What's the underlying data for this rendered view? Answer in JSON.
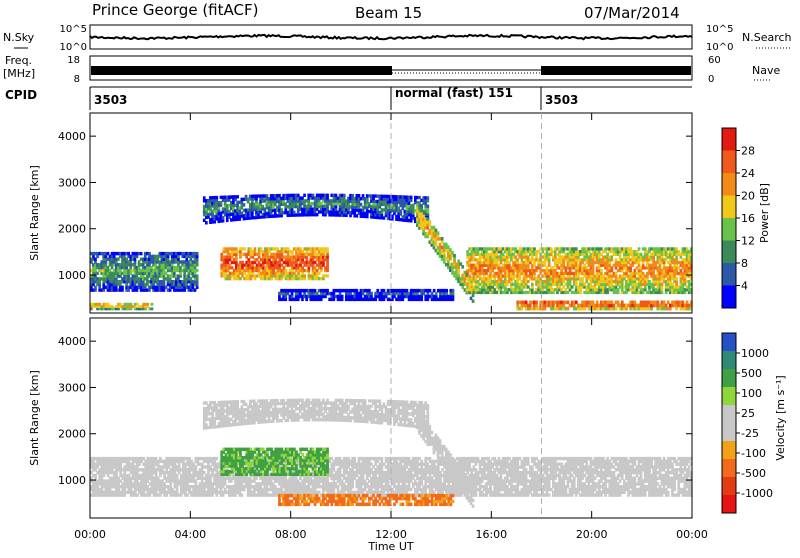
{
  "header": {
    "station": "Prince George (fitACF)",
    "beam": "Beam 15",
    "date": "07/Mar/2014"
  },
  "top_panels": {
    "nsky_label": "N.Sky",
    "nsky_ticks": [
      "10^5",
      "10^0"
    ],
    "nsearch_label": "N.Search",
    "nsearch_ticks": [
      "10^5",
      "10^0"
    ],
    "freq_label": "Freq.",
    "freq_unit": "[MHz]",
    "freq_ticks": [
      "18",
      "8"
    ],
    "nave_label": "Nave",
    "nave_ticks": [
      "60",
      "0"
    ],
    "cpid_label": "CPID",
    "cpid_segments": [
      {
        "start_hour": 0,
        "end_hour": 12,
        "text": "3503"
      },
      {
        "start_hour": 12,
        "end_hour": 18,
        "text": "normal (fast) 151"
      },
      {
        "start_hour": 18,
        "end_hour": 24,
        "text": "3503"
      }
    ]
  },
  "time_axis": {
    "label": "Time UT",
    "ticks": [
      "00:00",
      "04:00",
      "08:00",
      "12:00",
      "16:00",
      "20:00",
      "00:00"
    ]
  },
  "colors": {
    "power_scale": [
      "#0000ff",
      "#2d58a8",
      "#3a8a5a",
      "#69c24a",
      "#f0c81a",
      "#f28a18",
      "#ef5a1c",
      "#e21a10"
    ],
    "velocity_scale": [
      "#2650c8",
      "#2e8a74",
      "#3fa044",
      "#8fd63a",
      "#c8c8c8",
      "#c8c8c8",
      "#f2a21a",
      "#f26a1a",
      "#e23c14",
      "#e61414"
    ]
  },
  "chart_data": [
    {
      "type": "heatmap",
      "title": "",
      "xlabel": "",
      "ylabel": "Slant Range [km]",
      "xlim": [
        0,
        24
      ],
      "ylim": [
        180,
        4500
      ],
      "yticks": [
        1000,
        2000,
        3000,
        4000
      ],
      "colorbar": {
        "label": "Power [dB]",
        "ticks": [
          "28",
          "24",
          "20",
          "16",
          "12",
          "8",
          "4"
        ],
        "range": [
          0,
          30
        ]
      },
      "regions": [
        {
          "name": "main E/F band",
          "t_start": 0.0,
          "t_end": 4.3,
          "range_low": 650,
          "range_high": 1500,
          "power": 12
        },
        {
          "name": "near echo",
          "t_start": 0.0,
          "t_end": 2.5,
          "range_low": 250,
          "range_high": 400,
          "power": 20
        },
        {
          "name": "strong band",
          "t_start": 5.2,
          "t_end": 9.5,
          "range_low": 900,
          "range_high": 1600,
          "power": 26
        },
        {
          "name": "F-region arc",
          "t_start": 4.5,
          "t_end": 13.5,
          "range_low": 2100,
          "range_high": 2900,
          "power": 10
        },
        {
          "name": "lower echo",
          "t_start": 7.5,
          "t_end": 14.5,
          "range_low": 450,
          "range_high": 700,
          "power": 6
        },
        {
          "name": "descending trace",
          "t_start": 13.0,
          "t_end": 15.3,
          "range_low": 500,
          "range_high": 2400,
          "power": 20
        },
        {
          "name": "late band",
          "t_start": 15.0,
          "t_end": 24.0,
          "range_low": 600,
          "range_high": 1600,
          "power": 22
        },
        {
          "name": "late near echo",
          "t_start": 17.0,
          "t_end": 24.0,
          "range_low": 250,
          "range_high": 450,
          "power": 26
        }
      ]
    },
    {
      "type": "heatmap",
      "title": "",
      "xlabel": "Time UT",
      "ylabel": "Slant Range [km]",
      "xlim": [
        0,
        24
      ],
      "ylim": [
        180,
        4500
      ],
      "yticks": [
        1000,
        2000,
        3000,
        4000
      ],
      "colorbar": {
        "label": "Velocity [m s⁻¹]",
        "ticks": [
          "1000",
          "500",
          "100",
          "25",
          "-25",
          "-100",
          "-500",
          "-1000"
        ],
        "range": [
          -1200,
          1200
        ]
      },
      "regions": [
        {
          "name": "ground scatter band",
          "t_start": 0.0,
          "t_end": 24.0,
          "range_low": 650,
          "range_high": 1500,
          "velocity": 0
        },
        {
          "name": "F-region arc",
          "t_start": 4.5,
          "t_end": 13.5,
          "range_low": 2100,
          "range_high": 2900,
          "velocity": 0
        },
        {
          "name": "green flow",
          "t_start": 5.2,
          "t_end": 9.5,
          "range_low": 1100,
          "range_high": 1700,
          "velocity": 150
        },
        {
          "name": "descending trace",
          "t_start": 13.0,
          "t_end": 15.3,
          "range_low": 500,
          "range_high": 2400,
          "velocity": 0
        },
        {
          "name": "orange scatter",
          "t_start": 7.5,
          "t_end": 14.5,
          "range_low": 450,
          "range_high": 700,
          "velocity": -150
        }
      ]
    }
  ]
}
